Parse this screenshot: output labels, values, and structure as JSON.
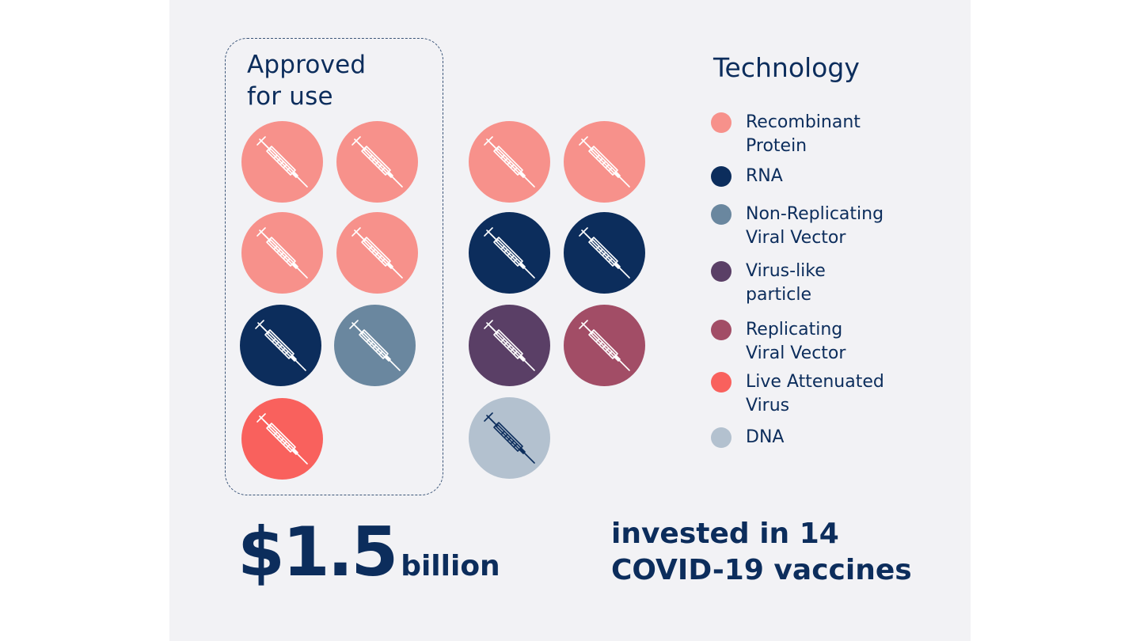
{
  "approved": {
    "title": "Approved\nfor use"
  },
  "legend": {
    "title": "Technology",
    "items": [
      {
        "label": "Recombinant\nProtein",
        "color": "#f7918b"
      },
      {
        "label": "RNA",
        "color": "#0c2d5c"
      },
      {
        "label": "Non-Replicating\nViral Vector",
        "color": "#6a879f"
      },
      {
        "label": "Virus-like\nparticle",
        "color": "#5a3f66"
      },
      {
        "label": "Replicating\nViral Vector",
        "color": "#a24d66"
      },
      {
        "label": "Live Attenuated\nVirus",
        "color": "#f9615d"
      },
      {
        "label": "DNA",
        "color": "#b3c1cf"
      }
    ]
  },
  "vaccines": {
    "icon": "syringe-icon",
    "approved": [
      "Recombinant Protein",
      "Recombinant Protein",
      "Recombinant Protein",
      "Recombinant Protein",
      "RNA",
      "Non-Replicating Viral Vector",
      "Live Attenuated Virus"
    ],
    "candidates": [
      "Recombinant Protein",
      "Recombinant Protein",
      "RNA",
      "RNA",
      "Virus-like particle",
      "Replicating Viral Vector",
      "DNA"
    ]
  },
  "summary": {
    "amount": "$1.5",
    "amount_unit": "billion",
    "description": "invested in 14\nCOVID-19 vaccines"
  }
}
